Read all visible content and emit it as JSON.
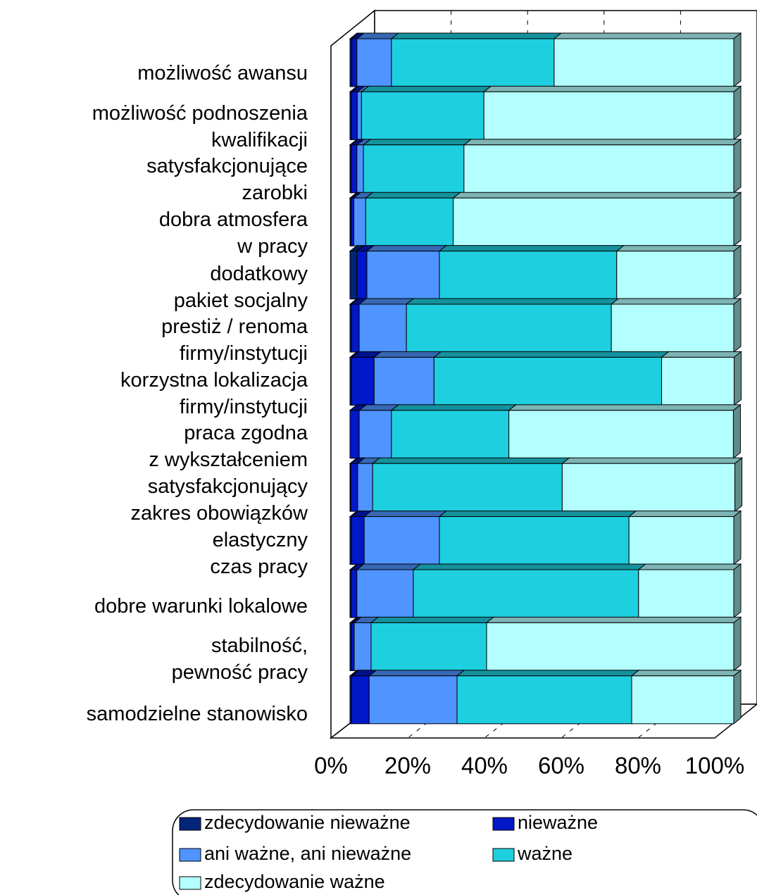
{
  "chart_data": {
    "type": "bar3d_stacked_percent_horizontal",
    "categories": [
      "możliwość awansu",
      "możliwość podnoszenia\nkwalifikacji",
      "satysfakcjonujące\nzarobki",
      "dobra atmosfera\nw pracy",
      "dodatkowy\npakiet socjalny",
      "prestiż / renoma\nfirmy/instytucji",
      "korzystna lokalizacja\nfirmy/instytucji",
      "praca zgodna\nz wykształceniem",
      "satysfakcjonujący\nzakres obowiązków",
      "elastyczny\nczas pracy",
      "dobre warunki lokalowe",
      "stabilność,\npewność pracy",
      "samodzielne stanowisko"
    ],
    "series": [
      {
        "name": "zdecydowanie nieważne",
        "color": "#00257a",
        "values": [
          0.5,
          0.4,
          0.3,
          0.3,
          1.8,
          0.4,
          0.4,
          0,
          0.2,
          0.4,
          0.3,
          0.4,
          0.4
        ]
      },
      {
        "name": "nieważne",
        "color": "#0018c8",
        "values": [
          1.3,
          1.5,
          1.5,
          0.7,
          2.6,
          2.0,
          5.9,
          2.4,
          1.8,
          3.3,
          1.5,
          0.7,
          4.6
        ]
      },
      {
        "name": "ani ważne, ani nieważne",
        "color": "#4f94ff",
        "values": [
          9.0,
          1.1,
          1.7,
          3.1,
          18.9,
          12.3,
          15.6,
          8.4,
          3.9,
          19.6,
          14.7,
          4.4,
          22.9
        ]
      },
      {
        "name": "ważne",
        "color": "#1ecfe0",
        "values": [
          42.4,
          31.9,
          26.2,
          22.8,
          46.2,
          53.4,
          59.3,
          30.6,
          49.4,
          49.4,
          58.7,
          30.1,
          45.5
        ]
      },
      {
        "name": "zdecydowanie ważne",
        "color": "#b3ffff",
        "values": [
          46.8,
          65.1,
          70.3,
          73.1,
          30.5,
          31.9,
          18.9,
          58.5,
          45.0,
          27.3,
          24.8,
          64.4,
          26.6
        ]
      }
    ],
    "xlim": [
      0,
      100
    ],
    "xticks": [
      {
        "value": 0,
        "label": "0%"
      },
      {
        "value": 20,
        "label": "20%"
      },
      {
        "value": 40,
        "label": "40%"
      },
      {
        "value": 60,
        "label": "60%"
      },
      {
        "value": 80,
        "label": "80%"
      },
      {
        "value": 100,
        "label": "100%"
      }
    ],
    "grid": true
  }
}
